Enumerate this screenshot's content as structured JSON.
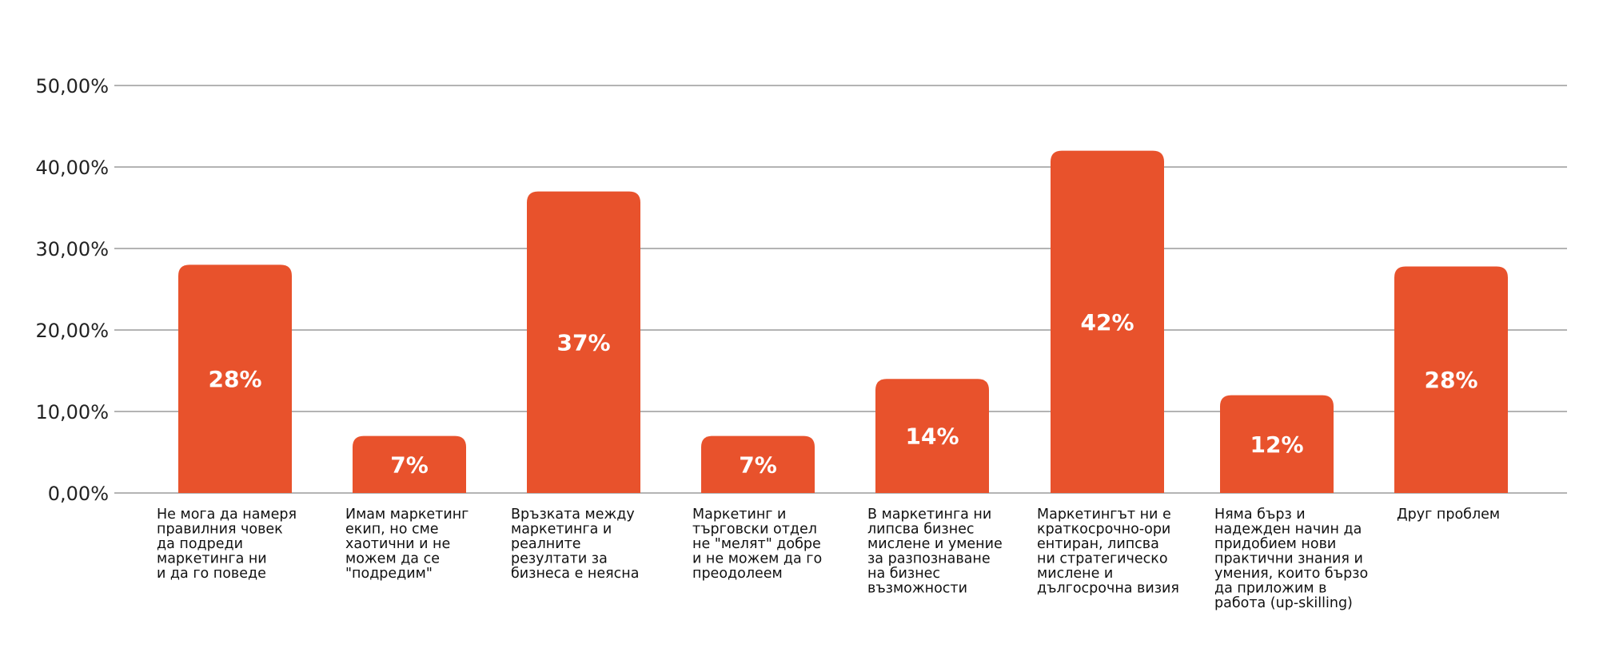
{
  "chart_data": {
    "type": "bar",
    "title": "",
    "xlabel": "",
    "ylabel": "",
    "ylim": [
      0,
      50
    ],
    "yticks": [
      0,
      10,
      20,
      30,
      40,
      50
    ],
    "ytick_labels": [
      "0,00%",
      "10,00%",
      "20,00%",
      "30,00%",
      "40,00%",
      "50,00%"
    ],
    "grid": true,
    "legend": "none",
    "categories": [
      "Не мога да намеря правилния човек да подреди маркетинга ни и да го поведе",
      "Имам маркетинг екип, но сме хаотични и не можем да се \"подредим\"",
      "Връзката между маркетинга и реалните резултати за бизнеса е неясна",
      "Маркетинг и търговски отдел не \"мелят\" добре и не можем да го преодолеем",
      "В маркетинга ни липсва бизнес мислене и умение за разпознаване на бизнес възможности",
      "Маркетингът ни е краткосрочно-ориентиран, липсва ни стратегическо мислене и дългосрочна визия",
      "Няма бърз и надежден начин да придобием нови практични знания и умения, които бързо да приложим в работа (up-skilling)",
      "Друг проблем"
    ],
    "category_lines": [
      [
        "Не мога да намеря",
        "правилния човек",
        "да подреди",
        "маркетинга ни",
        "и да го поведе"
      ],
      [
        "Имам маркетинг",
        "екип, но сме",
        "хаотични и не",
        "можем да се",
        "\"подредим\""
      ],
      [
        "Връзката между",
        "маркетинга и",
        "реалните",
        "резултати за",
        "бизнеса е неясна"
      ],
      [
        "Маркетинг и",
        "търговски отдел",
        "не \"мелят\" добре",
        "и не можем да го",
        "преодолеем"
      ],
      [
        "В маркетинга ни",
        "липсва бизнес",
        "мислене и умение",
        "за разпознаване",
        "на бизнес",
        "възможности"
      ],
      [
        "Маркетингът ни е",
        "краткосрочно-ори",
        "ентиран, липсва",
        "ни стратегическо",
        "мислене и",
        "дългосрочна визия"
      ],
      [
        "Няма бърз и",
        "надежден начин да",
        "придобием нови",
        "практични знания и",
        "умения, които бързо",
        "да приложим в",
        "работа (up-skilling)"
      ],
      [
        "Друг проблем"
      ]
    ],
    "values": [
      28,
      7,
      37,
      7,
      14,
      42,
      12,
      27.8
    ],
    "data_labels": [
      "28%",
      "7%",
      "37%",
      "7%",
      "14%",
      "42%",
      "12%",
      "28%"
    ],
    "colors": {
      "bar": "#E8522C",
      "grid": "#888888",
      "bar_label": "#FFFFFF",
      "axis_text": "#222222"
    }
  }
}
